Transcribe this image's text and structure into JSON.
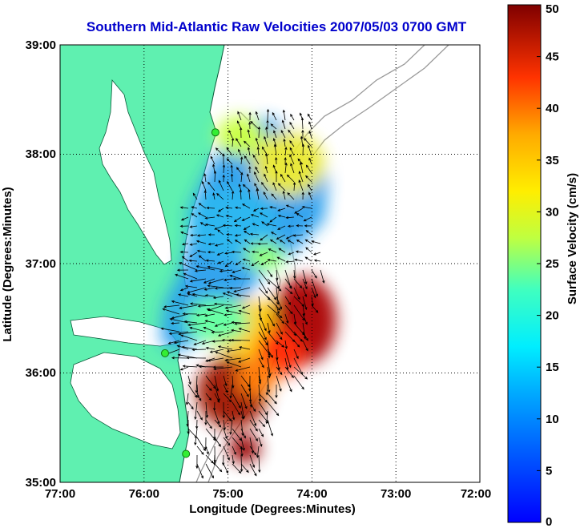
{
  "chart_data": {
    "type": "heatmap",
    "title": "Southern Mid-Atlantic Raw Velocities 2007/05/03 0700 GMT",
    "xlabel": "Longitude (Degrees:Minutes)",
    "ylabel": "Latitude (Degrees:Minutes)",
    "x_ticks": [
      "77:00",
      "76:00",
      "75:00",
      "74:00",
      "73:00",
      "72:00"
    ],
    "x_values": [
      -77,
      -76,
      -75,
      -74,
      -73,
      -72
    ],
    "y_ticks": [
      "39:00",
      "38:00",
      "37:00",
      "36:00",
      "35:00"
    ],
    "y_values": [
      39,
      38,
      37,
      36,
      35
    ],
    "xlim": [
      -77,
      -72
    ],
    "ylim": [
      35,
      39
    ],
    "grid": true,
    "colorbar": {
      "label": "Surface Velocity (cm/s)",
      "range": [
        0,
        50
      ],
      "ticks": [
        0,
        5,
        10,
        15,
        20,
        25,
        30,
        35,
        40,
        45,
        50
      ],
      "colormap": "jet"
    },
    "colors": {
      "land": "#5ff0b0",
      "coastline": "#0a5a3a",
      "bathymetry": "#9a9a9a",
      "title": "#0000cc",
      "site_marker": "#33ee33"
    },
    "velocity_regions": [
      {
        "lon": -74.8,
        "lat": 37.9,
        "speed": 14
      },
      {
        "lon": -74.4,
        "lat": 38.0,
        "speed": 25
      },
      {
        "lon": -74.6,
        "lat": 37.5,
        "speed": 11
      },
      {
        "lon": -74.9,
        "lat": 37.2,
        "speed": 9
      },
      {
        "lon": -74.5,
        "lat": 36.9,
        "speed": 18
      },
      {
        "lon": -74.2,
        "lat": 36.5,
        "speed": 48
      },
      {
        "lon": -74.6,
        "lat": 36.7,
        "speed": 30
      },
      {
        "lon": -75.0,
        "lat": 36.4,
        "speed": 22
      },
      {
        "lon": -74.9,
        "lat": 35.8,
        "speed": 45
      },
      {
        "lon": -74.7,
        "lat": 35.3,
        "speed": 40
      },
      {
        "lon": -75.0,
        "lat": 36.0,
        "speed": 33
      }
    ],
    "radar_sites": [
      {
        "lon": -75.15,
        "lat": 38.2
      },
      {
        "lon": -75.75,
        "lat": 36.18
      },
      {
        "lon": -75.5,
        "lat": 35.26
      }
    ]
  }
}
